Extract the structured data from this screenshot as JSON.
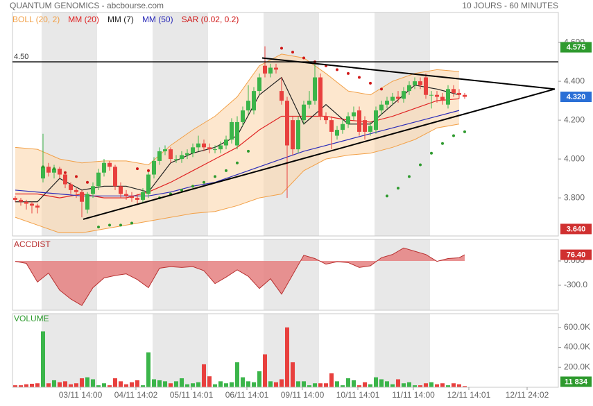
{
  "header": {
    "title": "QUANTUM GENOMICS - abcbourse.com",
    "period": "10 JOURS - 60 MINUTES"
  },
  "chart_data": [
    {
      "type": "candlestick",
      "x": [
        0,
        1,
        2,
        3,
        4,
        5,
        6,
        7,
        8,
        9,
        10,
        11,
        12,
        13,
        14,
        15,
        16,
        17,
        18,
        19,
        20,
        21,
        22,
        23,
        24,
        25,
        26,
        27,
        28,
        29,
        30,
        31,
        32,
        33,
        34,
        35,
        36,
        37,
        38,
        39,
        40,
        41,
        42,
        43,
        44,
        45,
        46,
        47,
        48,
        49,
        50,
        51,
        52,
        53,
        54,
        55,
        56,
        57,
        58,
        59,
        60,
        61,
        62,
        63,
        64,
        65,
        66,
        67,
        68,
        69,
        70,
        71,
        72,
        73,
        74,
        75,
        76,
        77,
        78,
        79,
        80,
        81
      ],
      "open": [
        3.8,
        3.79,
        3.78,
        3.77,
        3.76,
        3.9,
        3.96,
        3.93,
        3.95,
        3.92,
        3.87,
        3.84,
        3.83,
        3.74,
        3.82,
        3.86,
        3.93,
        3.98,
        3.96,
        3.86,
        3.82,
        3.81,
        3.8,
        3.79,
        3.82,
        3.92,
        3.99,
        4.04,
        4.05,
        4.0,
        4.0,
        4.02,
        4.03,
        4.06,
        4.08,
        4.06,
        4.05,
        4.05,
        4.07,
        4.1,
        4.07,
        4.19,
        4.25,
        4.25,
        4.35,
        4.48,
        4.44,
        4.47,
        4.35,
        4.3,
        4.2,
        4.05,
        4.2,
        4.28,
        4.3,
        4.42,
        4.22,
        4.2,
        4.12,
        4.15,
        4.18,
        4.22,
        4.25,
        4.2,
        4.14,
        4.15,
        4.25,
        4.28,
        4.3,
        4.32,
        4.31,
        4.35,
        4.38,
        4.4,
        4.42,
        4.33,
        4.33,
        4.32,
        4.28,
        4.36,
        4.34,
        4.33
      ],
      "high": [
        3.81,
        3.8,
        3.79,
        3.78,
        3.77,
        4.13,
        3.98,
        3.97,
        3.96,
        3.93,
        3.88,
        3.85,
        3.84,
        3.83,
        3.88,
        3.95,
        4.0,
        3.99,
        3.97,
        3.88,
        3.84,
        3.83,
        3.82,
        3.85,
        3.94,
        4.01,
        4.06,
        4.07,
        4.06,
        4.02,
        4.04,
        4.05,
        4.08,
        4.12,
        4.1,
        4.08,
        4.07,
        4.09,
        4.12,
        4.21,
        4.22,
        4.27,
        4.38,
        4.37,
        4.44,
        4.58,
        4.49,
        4.49,
        4.42,
        4.32,
        4.22,
        4.22,
        4.3,
        4.35,
        4.5,
        4.44,
        4.24,
        4.22,
        4.17,
        4.2,
        4.24,
        4.27,
        4.27,
        4.22,
        4.19,
        4.27,
        4.3,
        4.32,
        4.34,
        4.35,
        4.37,
        4.4,
        4.42,
        4.42,
        4.44,
        4.35,
        4.35,
        4.34,
        4.38,
        4.38,
        4.36,
        4.34
      ],
      "low": [
        3.78,
        3.76,
        3.74,
        3.72,
        3.72,
        3.88,
        3.91,
        3.9,
        3.9,
        3.85,
        3.82,
        3.8,
        3.7,
        3.72,
        3.8,
        3.84,
        3.91,
        3.94,
        3.84,
        3.8,
        3.79,
        3.78,
        3.77,
        3.77,
        3.8,
        3.9,
        3.97,
        4.02,
        3.98,
        3.98,
        3.98,
        4.0,
        4.01,
        4.04,
        4.04,
        4.03,
        4.03,
        4.03,
        4.05,
        4.08,
        4.05,
        4.17,
        4.23,
        4.23,
        4.33,
        4.42,
        4.42,
        4.44,
        4.28,
        3.8,
        4.02,
        4.03,
        4.18,
        4.26,
        4.28,
        4.2,
        4.18,
        4.05,
        4.1,
        4.13,
        4.16,
        4.2,
        4.12,
        4.1,
        4.12,
        4.13,
        4.23,
        4.26,
        4.28,
        4.29,
        4.29,
        4.33,
        4.36,
        4.36,
        4.31,
        4.26,
        4.29,
        4.28,
        4.26,
        4.32,
        4.31,
        4.31
      ],
      "close": [
        3.79,
        3.78,
        3.77,
        3.76,
        3.75,
        3.96,
        3.93,
        3.95,
        3.92,
        3.87,
        3.84,
        3.83,
        3.78,
        3.82,
        3.86,
        3.93,
        3.98,
        3.96,
        3.86,
        3.82,
        3.81,
        3.8,
        3.79,
        3.83,
        3.92,
        3.99,
        4.04,
        4.05,
        4.0,
        4.0,
        4.02,
        4.03,
        4.06,
        4.08,
        4.06,
        4.05,
        4.05,
        4.07,
        4.1,
        4.19,
        4.19,
        4.25,
        4.3,
        4.35,
        4.42,
        4.44,
        4.47,
        4.46,
        4.3,
        4.07,
        4.05,
        4.2,
        4.28,
        4.3,
        4.42,
        4.22,
        4.2,
        4.14,
        4.15,
        4.18,
        4.22,
        4.24,
        4.14,
        4.14,
        4.17,
        4.25,
        4.28,
        4.3,
        4.32,
        4.31,
        4.35,
        4.38,
        4.4,
        4.38,
        4.33,
        4.33,
        4.32,
        4.3,
        4.36,
        4.34,
        4.33,
        4.32
      ],
      "up_color": "#3bb54a",
      "down_color": "#e8403e",
      "xlim": [
        -0.5,
        97.875
      ],
      "ylim": [
        3.604,
        4.754
      ],
      "yticks": [
        {
          "value": 3.8,
          "label": "3.800"
        },
        {
          "value": 4,
          "label": "4.000"
        },
        {
          "value": 4.2,
          "label": "4.200"
        },
        {
          "value": 4.4,
          "label": "4.400"
        },
        {
          "value": 4.6,
          "label": "4.600"
        }
      ],
      "day_bands": [
        [
          4.75,
          14.75
        ],
        [
          24.75,
          34.75
        ],
        [
          44.75,
          54.75
        ],
        [
          64.75,
          74.75
        ]
      ],
      "indicators": [
        {
          "name": "BOLL (20, 2)",
          "kind": "band",
          "color": "#f2a047",
          "fill": "#fbd7ad",
          "x": [
            0,
            4,
            8,
            12,
            16,
            20,
            24,
            28,
            32,
            36,
            40,
            44,
            48,
            52,
            56,
            60,
            64,
            68,
            72,
            76,
            80
          ],
          "upper": [
            4.06,
            4.05,
            4.0,
            3.98,
            3.99,
            3.99,
            3.97,
            4.07,
            4.15,
            4.22,
            4.32,
            4.48,
            4.54,
            4.52,
            4.44,
            4.35,
            4.33,
            4.4,
            4.44,
            4.46,
            4.45
          ],
          "lower": [
            3.7,
            3.66,
            3.62,
            3.62,
            3.64,
            3.66,
            3.68,
            3.7,
            3.72,
            3.73,
            3.76,
            3.8,
            3.82,
            3.94,
            4.0,
            4.02,
            4.03,
            4.06,
            4.1,
            4.16,
            4.18
          ]
        },
        {
          "name": "MM (20)",
          "kind": "line",
          "color": "#e02424",
          "x": [
            0,
            4,
            8,
            12,
            16,
            20,
            24,
            28,
            32,
            36,
            40,
            44,
            48,
            52,
            56,
            60,
            64,
            68,
            72,
            76,
            80
          ],
          "values": [
            3.82,
            3.82,
            3.8,
            3.82,
            3.8,
            3.8,
            3.83,
            3.88,
            3.94,
            4.0,
            4.06,
            4.15,
            4.22,
            4.22,
            4.22,
            4.2,
            4.19,
            4.22,
            4.26,
            4.3,
            4.31
          ]
        },
        {
          "name": "MM (7)",
          "kind": "line",
          "color": "#222222",
          "x": [
            0,
            4,
            8,
            12,
            16,
            20,
            24,
            28,
            32,
            36,
            40,
            44,
            48,
            52,
            56,
            60,
            64,
            68,
            72,
            76,
            80
          ],
          "values": [
            3.78,
            3.78,
            3.9,
            3.84,
            3.86,
            3.86,
            3.83,
            3.98,
            4.03,
            4.06,
            4.12,
            4.33,
            4.42,
            4.18,
            4.28,
            4.18,
            4.18,
            4.28,
            4.38,
            4.36,
            4.33
          ]
        },
        {
          "name": "MM (50)",
          "kind": "line",
          "color": "#2b2bb8",
          "x": [
            0,
            4,
            8,
            12,
            16,
            20,
            24,
            28,
            32,
            36,
            40,
            44,
            48,
            52,
            56,
            60,
            64,
            68,
            72,
            76,
            80
          ],
          "values": [
            3.84,
            3.83,
            3.82,
            3.81,
            3.81,
            3.81,
            3.81,
            3.83,
            3.86,
            3.88,
            3.92,
            3.96,
            4.0,
            4.04,
            4.07,
            4.1,
            4.13,
            4.16,
            4.19,
            4.22,
            4.25
          ]
        },
        {
          "name": "SAR (0.02, 0.2)",
          "kind": "dots",
          "color": "#d01818",
          "dot_colors": {
            "above": "#d01818",
            "below": "#2e9a2e"
          },
          "x": [
            5,
            7,
            9,
            11,
            13,
            15,
            17,
            19,
            21,
            22,
            24,
            26,
            28,
            30,
            32,
            34,
            36,
            38,
            40,
            42,
            48,
            50,
            52,
            54,
            56,
            58,
            60,
            62,
            64,
            66,
            67,
            69,
            71,
            73,
            75,
            77,
            79,
            81
          ],
          "values": [
            3.96,
            3.95,
            3.93,
            3.91,
            3.88,
            3.65,
            3.66,
            3.66,
            3.67,
            3.95,
            3.94,
            3.8,
            3.82,
            3.84,
            3.86,
            3.88,
            3.91,
            3.94,
            3.98,
            4.04,
            4.57,
            4.55,
            4.52,
            4.5,
            4.48,
            4.46,
            4.44,
            4.42,
            4.39,
            4.36,
            3.81,
            3.85,
            3.91,
            3.97,
            4.03,
            4.08,
            4.12,
            4.14
          ]
        }
      ],
      "trendlines": [
        {
          "x": [
            44.5,
            97.25
          ],
          "values": [
            4.52,
            4.36
          ]
        },
        {
          "x": [
            12.25,
            97.25
          ],
          "values": [
            3.69,
            4.36
          ]
        }
      ],
      "level": {
        "value": 4.5,
        "label": "4.50"
      },
      "price_labels": [
        {
          "value": 4.575,
          "color": "#2e9a2e"
        },
        {
          "value": 4.32,
          "label": "4.320",
          "color": "#2a6fd6"
        },
        {
          "value": 3.64,
          "label": "3.640",
          "color": "#d03030"
        }
      ]
    },
    {
      "type": "area",
      "title": "ACCDIST",
      "color": "#b83030",
      "fill": "#e58080",
      "x": [
        0,
        2,
        4,
        6,
        8,
        10,
        12,
        14,
        16,
        18,
        20,
        22,
        24,
        26,
        28,
        30,
        32,
        34,
        36,
        38,
        40,
        42,
        44,
        46,
        48,
        50,
        52,
        54,
        56,
        58,
        60,
        62,
        64,
        66,
        68,
        70,
        72,
        74,
        76,
        78,
        80,
        81
      ],
      "values": [
        -5,
        -30,
        -260,
        -150,
        -360,
        -470,
        -550,
        -330,
        -210,
        -180,
        -160,
        -230,
        -330,
        -90,
        -70,
        -80,
        -70,
        -120,
        -280,
        -200,
        -110,
        -190,
        -340,
        -220,
        -410,
        -170,
        70,
        30,
        -40,
        -10,
        -20,
        -80,
        -60,
        40,
        80,
        160,
        120,
        80,
        -5,
        30,
        40,
        76.4
      ],
      "xlim": [
        -0.5,
        97.875
      ],
      "ylim": [
        -608.6,
        265.7
      ],
      "yticks": [
        {
          "value": 0,
          "label": "0.000"
        },
        {
          "value": -300,
          "label": "-300.0"
        }
      ],
      "current": {
        "value": 76.4,
        "label": "76.40",
        "color": "#d03030"
      }
    },
    {
      "type": "bar",
      "title": "VOLUME",
      "color": "#2e9a2e",
      "x": [
        0,
        1,
        2,
        3,
        4,
        5,
        6,
        7,
        8,
        9,
        10,
        11,
        12,
        13,
        14,
        15,
        16,
        17,
        18,
        19,
        20,
        21,
        22,
        23,
        24,
        25,
        26,
        27,
        28,
        29,
        30,
        31,
        32,
        33,
        34,
        35,
        36,
        37,
        38,
        39,
        40,
        41,
        42,
        43,
        44,
        45,
        46,
        47,
        48,
        49,
        50,
        51,
        52,
        53,
        54,
        55,
        56,
        57,
        58,
        59,
        60,
        61,
        62,
        63,
        64,
        65,
        66,
        67,
        68,
        69,
        70,
        71,
        72,
        73,
        74,
        75,
        76,
        77,
        78,
        79,
        80,
        81
      ],
      "values": [
        20000,
        20000,
        30000,
        35000,
        40000,
        560000,
        40000,
        70000,
        50000,
        60000,
        30000,
        40000,
        90000,
        100000,
        80000,
        20000,
        40000,
        20000,
        90000,
        60000,
        30000,
        50000,
        70000,
        20000,
        350000,
        80000,
        70000,
        60000,
        40000,
        60000,
        90000,
        30000,
        40000,
        50000,
        230000,
        110000,
        30000,
        60000,
        40000,
        50000,
        250000,
        100000,
        60000,
        50000,
        160000,
        330000,
        60000,
        50000,
        80000,
        600000,
        250000,
        60000,
        60000,
        20000,
        40000,
        40000,
        40000,
        140000,
        60000,
        20000,
        90000,
        70000,
        20000,
        50000,
        30000,
        100000,
        80000,
        60000,
        30000,
        80000,
        40000,
        50000,
        20000,
        20000,
        40000,
        50000,
        30000,
        40000,
        20000,
        40000,
        30000,
        11834
      ],
      "xlim": [
        -0.5,
        97.875
      ],
      "ylim": [
        0,
        737000
      ],
      "yticks": [
        {
          "value": 200000,
          "label": "200.0K"
        },
        {
          "value": 400000,
          "label": "400.0K"
        },
        {
          "value": 600000,
          "label": "600.0K"
        }
      ],
      "xticks": [
        {
          "value": 11.75,
          "label": "03/11 14:00"
        },
        {
          "value": 21.75,
          "label": "04/11 14:02"
        },
        {
          "value": 31.75,
          "label": "05/11 14:01"
        },
        {
          "value": 41.75,
          "label": "06/11 14:01"
        },
        {
          "value": 51.75,
          "label": "09/11 14:00"
        },
        {
          "value": 61.75,
          "label": "10/11 14:01"
        },
        {
          "value": 71.75,
          "label": "11/11 14:00"
        },
        {
          "value": 81.75,
          "label": "12/11 14:01"
        },
        {
          "value": 92.25,
          "label": "12/11 24:02"
        }
      ],
      "current": {
        "value": 11834,
        "label": "11 834",
        "color": "#2e9a2e"
      }
    }
  ]
}
